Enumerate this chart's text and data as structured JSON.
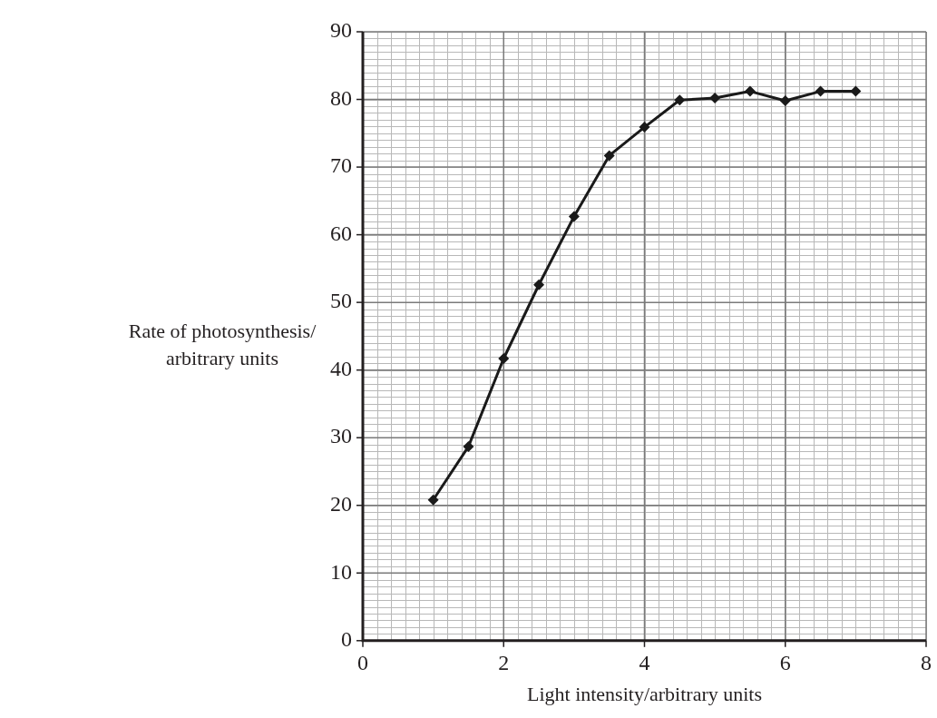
{
  "chart_data": {
    "type": "line",
    "xlabel": "Light intensity/arbitrary units",
    "ylabel": "Rate of photosynthesis/arbitrary units",
    "x": [
      1,
      1.5,
      2,
      2.5,
      3,
      3.5,
      4,
      4.5,
      5,
      5.5,
      6,
      6.5,
      7
    ],
    "series": [
      {
        "color": "#1a1a1a",
        "values": [
          20.8,
          28.7,
          41.7,
          52.6,
          62.7,
          71.7,
          75.9,
          79.9,
          80.2,
          81.2,
          79.8,
          81.2,
          81.2
        ]
      }
    ],
    "xlim": [
      0,
      8
    ],
    "xticks": [
      0,
      2,
      4,
      6,
      8
    ],
    "ylim": [
      0,
      90
    ],
    "yticks": [
      0,
      10,
      20,
      30,
      40,
      50,
      60,
      70,
      80,
      90
    ],
    "grid": true,
    "legend": false,
    "marker": "diamond",
    "line_style": "solid"
  }
}
